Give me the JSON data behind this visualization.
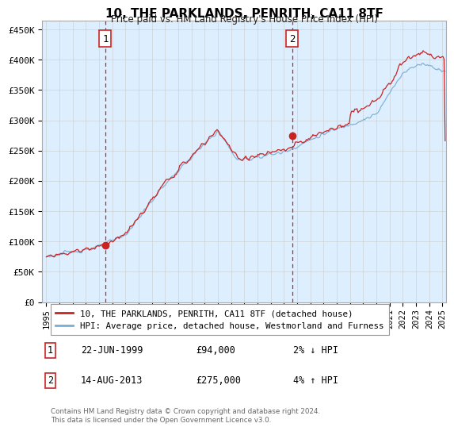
{
  "title": "10, THE PARKLANDS, PENRITH, CA11 8TF",
  "subtitle": "Price paid vs. HM Land Registry's House Price Index (HPI)",
  "ylabel_ticks": [
    "£0",
    "£50K",
    "£100K",
    "£150K",
    "£200K",
    "£250K",
    "£300K",
    "£350K",
    "£400K",
    "£450K"
  ],
  "ytick_values": [
    0,
    50000,
    100000,
    150000,
    200000,
    250000,
    300000,
    350000,
    400000,
    450000
  ],
  "ylim": [
    0,
    465000
  ],
  "xlim_start": 1994.7,
  "xlim_end": 2025.3,
  "sale1_x": 1999.47,
  "sale1_y": 94000,
  "sale1_label": "1",
  "sale1_date": "22-JUN-1999",
  "sale1_price": "£94,000",
  "sale1_hpi": "2% ↓ HPI",
  "sale2_x": 2013.62,
  "sale2_y": 275000,
  "sale2_label": "2",
  "sale2_date": "14-AUG-2013",
  "sale2_price": "£275,000",
  "sale2_hpi": "4% ↑ HPI",
  "line_color_hpi": "#7aadd4",
  "line_color_price": "#cc2222",
  "vline_color": "#cc2222",
  "marker_color": "#cc2222",
  "chart_bg_color": "#ddeeff",
  "legend_label1": "10, THE PARKLANDS, PENRITH, CA11 8TF (detached house)",
  "legend_label2": "HPI: Average price, detached house, Westmorland and Furness",
  "footer": "Contains HM Land Registry data © Crown copyright and database right 2024.\nThis data is licensed under the Open Government Licence v3.0.",
  "background_color": "#ffffff",
  "grid_color": "#cccccc"
}
